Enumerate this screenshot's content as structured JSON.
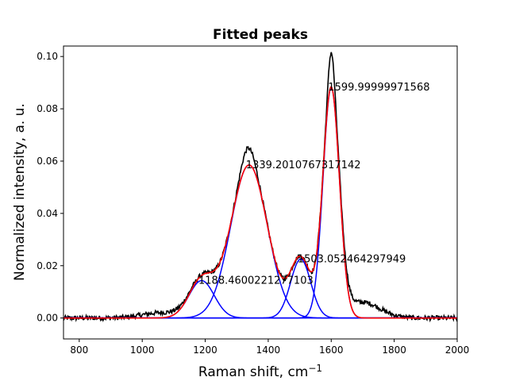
{
  "chart_data": {
    "type": "line",
    "title": "Fitted peaks",
    "xlabel_main": "Raman shift, cm",
    "xlabel_sup": "−1",
    "ylabel": "Normalized intensity, a. u.",
    "xlim": [
      750,
      2000
    ],
    "ylim": [
      -0.008,
      0.104
    ],
    "xticks": [
      800,
      1000,
      1200,
      1400,
      1600,
      1800,
      2000
    ],
    "xtick_labels": [
      "800",
      "1000",
      "1200",
      "1400",
      "1600",
      "1800",
      "2000"
    ],
    "yticks": [
      0.0,
      0.02,
      0.04,
      0.06,
      0.08,
      0.1
    ],
    "ytick_labels": [
      "0.00",
      "0.02",
      "0.04",
      "0.06",
      "0.08",
      "0.10"
    ],
    "grid": false,
    "legend": "none",
    "colors": {
      "spectrum": "#000000",
      "components": "#0000ff",
      "fit": "#ff0000"
    },
    "components": [
      {
        "center": 1188.46,
        "amplitude": 0.0143,
        "sigma": 40,
        "label": "1188.4600221277103"
      },
      {
        "center": 1339.2,
        "amplitude": 0.0585,
        "sigma": 58,
        "label": "1339.2010767317142"
      },
      {
        "center": 1503.05,
        "amplitude": 0.0225,
        "sigma": 32,
        "label": "1503.052464297949"
      },
      {
        "center": 1600.0,
        "amplitude": 0.0882,
        "sigma": 26,
        "label": "1599.99999971568"
      }
    ],
    "spectrum_features": {
      "x_step": 2,
      "noise_amplitude": 0.0009,
      "baseline_bumps": [
        {
          "center": 1700,
          "amplitude": 0.006,
          "sigma": 55
        },
        {
          "center": 1060,
          "amplitude": 0.002,
          "sigma": 60
        }
      ],
      "sharp_peaks": [
        {
          "center": 1335,
          "amplitude": 0.0065,
          "sigma": 20
        },
        {
          "center": 1600,
          "amplitude": 0.012,
          "sigma": 9
        }
      ]
    }
  }
}
